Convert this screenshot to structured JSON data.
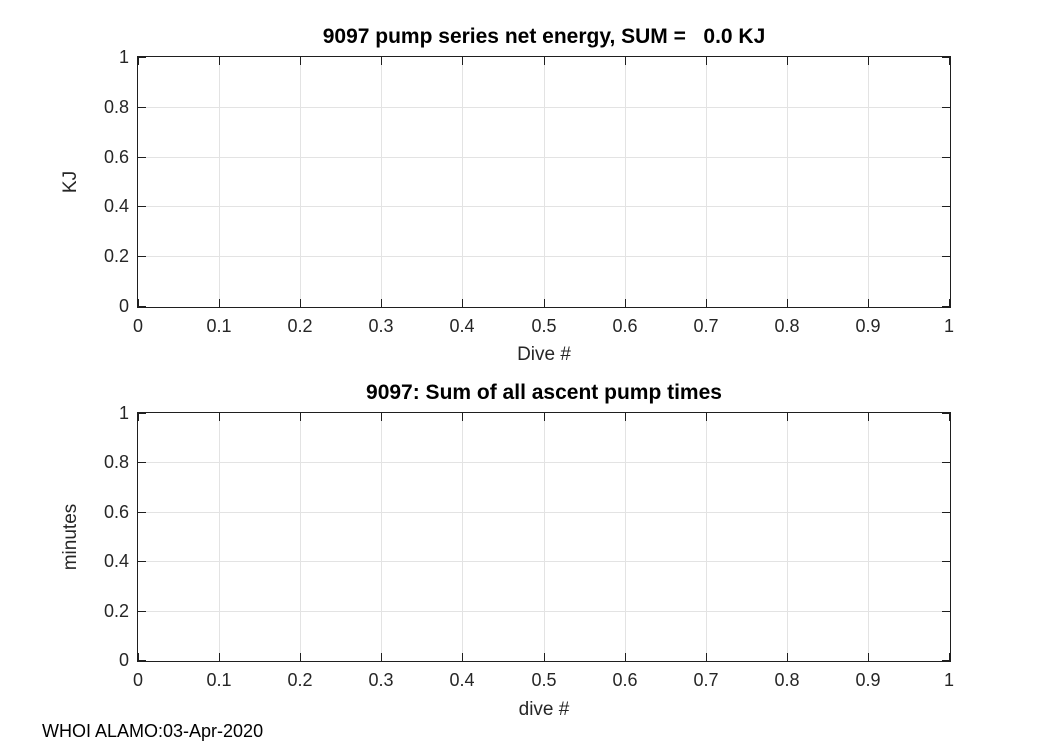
{
  "figure": {
    "background": "#ffffff",
    "axis_color": "#1f1f1f",
    "grid_color": "#e3e3e3",
    "text_color": "#262626",
    "footer": "WHOI ALAMO:03-Apr-2020"
  },
  "chart_data": [
    {
      "type": "line",
      "title": "9097 pump series net energy, SUM =   0.0 KJ",
      "xlabel": "Dive #",
      "ylabel": "KJ",
      "xlim": [
        0,
        1
      ],
      "ylim": [
        0,
        1
      ],
      "grid": true,
      "xticks": [
        0,
        0.1,
        0.2,
        0.3,
        0.4,
        0.5,
        0.6,
        0.7,
        0.8,
        0.9,
        1
      ],
      "xtick_labels": [
        "0",
        "0.1",
        "0.2",
        "0.3",
        "0.4",
        "0.5",
        "0.6",
        "0.7",
        "0.8",
        "0.9",
        "1"
      ],
      "yticks": [
        0,
        0.2,
        0.4,
        0.6,
        0.8,
        1
      ],
      "ytick_labels": [
        "0",
        "0.2",
        "0.4",
        "0.6",
        "0.8",
        "1"
      ],
      "series": [],
      "note": "empty axes, no data plotted, sum shown in title is 0.0 KJ"
    },
    {
      "type": "line",
      "title": "9097: Sum of all ascent pump times",
      "xlabel": "dive #",
      "ylabel": "minutes",
      "xlim": [
        0,
        1
      ],
      "ylim": [
        0,
        1
      ],
      "grid": true,
      "xticks": [
        0,
        0.1,
        0.2,
        0.3,
        0.4,
        0.5,
        0.6,
        0.7,
        0.8,
        0.9,
        1
      ],
      "xtick_labels": [
        "0",
        "0.1",
        "0.2",
        "0.3",
        "0.4",
        "0.5",
        "0.6",
        "0.7",
        "0.8",
        "0.9",
        "1"
      ],
      "yticks": [
        0,
        0.2,
        0.4,
        0.6,
        0.8,
        1
      ],
      "ytick_labels": [
        "0",
        "0.2",
        "0.4",
        "0.6",
        "0.8",
        "1"
      ],
      "series": [],
      "note": "empty axes, no data plotted"
    }
  ]
}
